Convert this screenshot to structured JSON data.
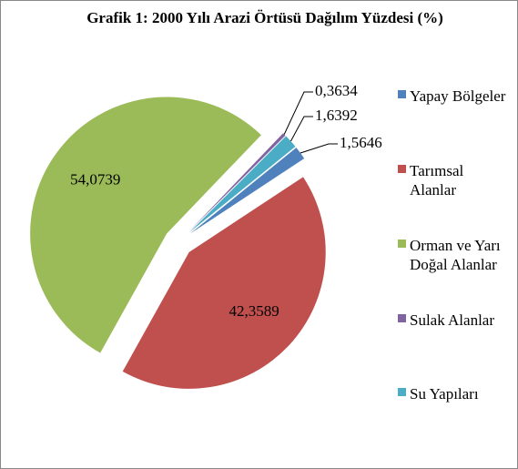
{
  "chart_data": {
    "type": "pie",
    "title": "Grafik 1: 2000 Yılı Arazi Örtüsü Dağılım Yüzdesi (%)",
    "series": [
      {
        "name": "Yapay Bölgeler",
        "color": "#4f81bd",
        "values": [
          1.5646
        ],
        "value_labels": [
          "1,5646"
        ]
      },
      {
        "name": "Tarımsal Alanlar",
        "color": "#c0504d",
        "values": [
          42.3589
        ],
        "value_labels": [
          "42,3589"
        ]
      },
      {
        "name": "Orman ve Yarı Doğal Alanlar",
        "color": "#9bbb59",
        "values": [
          54.0739
        ],
        "value_labels": [
          "54,0739"
        ]
      },
      {
        "name": "Sulak Alanlar",
        "color": "#8064a2",
        "values": [
          0.3634
        ],
        "value_labels": [
          "0,3634"
        ]
      },
      {
        "name": "Su Yapıları",
        "color": "#4bacc6",
        "values": [
          1.6392
        ],
        "value_labels": [
          "1,6392"
        ]
      }
    ],
    "legend": "right"
  }
}
